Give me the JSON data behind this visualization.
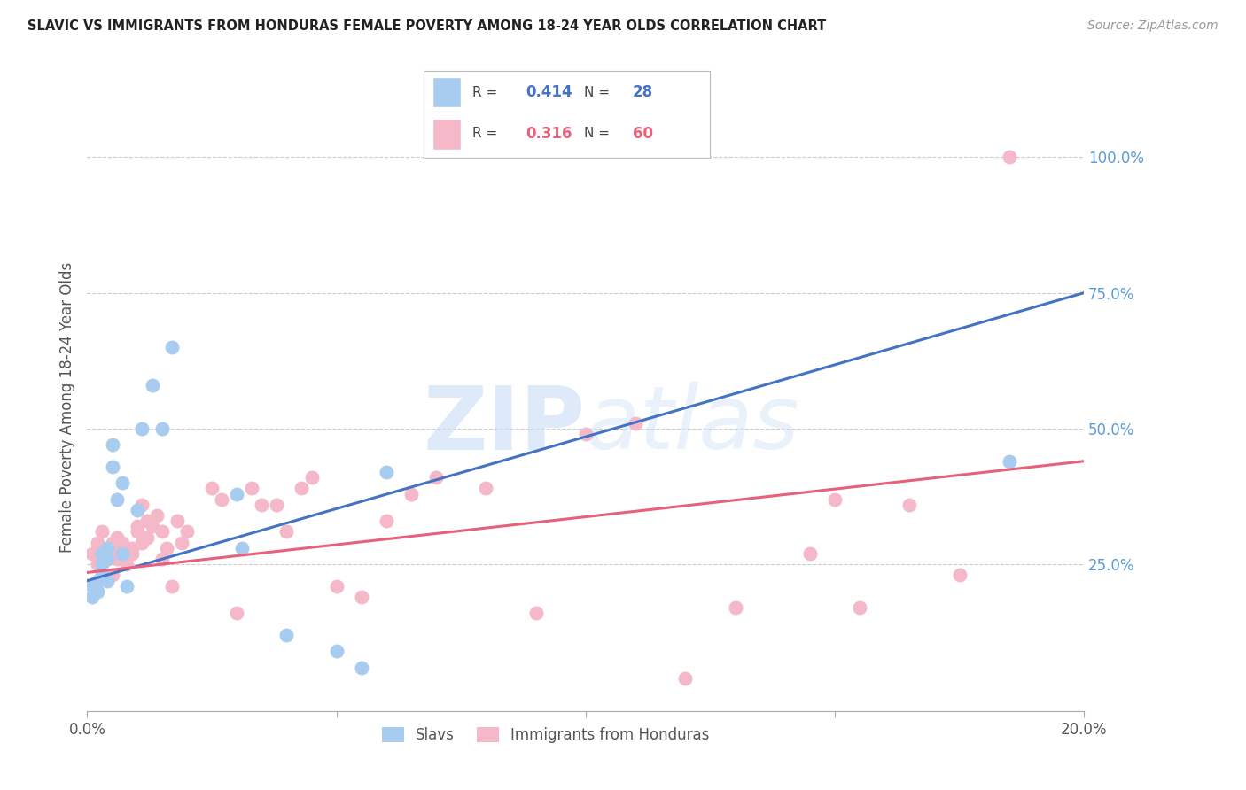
{
  "title": "SLAVIC VS IMMIGRANTS FROM HONDURAS FEMALE POVERTY AMONG 18-24 YEAR OLDS CORRELATION CHART",
  "source": "Source: ZipAtlas.com",
  "ylabel": "Female Poverty Among 18-24 Year Olds",
  "xlabel_slavs": "Slavs",
  "xlabel_honduras": "Immigrants from Honduras",
  "xmin": 0.0,
  "xmax": 0.2,
  "ymin": -0.02,
  "ymax": 1.1,
  "yticks": [
    0.25,
    0.5,
    0.75,
    1.0
  ],
  "ytick_labels": [
    "25.0%",
    "50.0%",
    "75.0%",
    "100.0%"
  ],
  "xticks": [
    0.0,
    0.05,
    0.1,
    0.15,
    0.2
  ],
  "xtick_labels": [
    "0.0%",
    "",
    "",
    "",
    "20.0%"
  ],
  "slavs_R": 0.414,
  "slavs_N": 28,
  "honduras_R": 0.316,
  "honduras_N": 60,
  "slavs_color": "#A8CCF0",
  "honduras_color": "#F5B8C8",
  "slavs_line_color": "#4472C4",
  "honduras_line_color": "#E8607A",
  "watermark_color": "#C8DCF5",
  "background_color": "#FFFFFF",
  "slavs_x": [
    0.001,
    0.001,
    0.002,
    0.002,
    0.003,
    0.003,
    0.003,
    0.004,
    0.004,
    0.004,
    0.005,
    0.005,
    0.006,
    0.007,
    0.007,
    0.008,
    0.01,
    0.011,
    0.013,
    0.015,
    0.017,
    0.03,
    0.031,
    0.04,
    0.05,
    0.055,
    0.06,
    0.185
  ],
  "slavs_y": [
    0.21,
    0.19,
    0.22,
    0.2,
    0.25,
    0.27,
    0.23,
    0.26,
    0.28,
    0.22,
    0.47,
    0.43,
    0.37,
    0.4,
    0.27,
    0.21,
    0.35,
    0.5,
    0.58,
    0.5,
    0.65,
    0.38,
    0.28,
    0.12,
    0.09,
    0.06,
    0.42,
    0.44
  ],
  "honduras_x": [
    0.001,
    0.002,
    0.002,
    0.003,
    0.003,
    0.004,
    0.004,
    0.005,
    0.005,
    0.005,
    0.006,
    0.006,
    0.006,
    0.007,
    0.007,
    0.008,
    0.008,
    0.009,
    0.009,
    0.01,
    0.01,
    0.011,
    0.011,
    0.012,
    0.012,
    0.013,
    0.014,
    0.015,
    0.015,
    0.016,
    0.017,
    0.018,
    0.019,
    0.02,
    0.025,
    0.027,
    0.03,
    0.033,
    0.035,
    0.038,
    0.04,
    0.043,
    0.045,
    0.05,
    0.055,
    0.06,
    0.065,
    0.07,
    0.08,
    0.09,
    0.1,
    0.11,
    0.12,
    0.13,
    0.145,
    0.15,
    0.155,
    0.165,
    0.175,
    0.185
  ],
  "honduras_y": [
    0.27,
    0.25,
    0.29,
    0.28,
    0.31,
    0.26,
    0.27,
    0.29,
    0.23,
    0.27,
    0.26,
    0.3,
    0.28,
    0.29,
    0.27,
    0.27,
    0.25,
    0.28,
    0.27,
    0.31,
    0.32,
    0.29,
    0.36,
    0.33,
    0.3,
    0.32,
    0.34,
    0.31,
    0.26,
    0.28,
    0.21,
    0.33,
    0.29,
    0.31,
    0.39,
    0.37,
    0.16,
    0.39,
    0.36,
    0.36,
    0.31,
    0.39,
    0.41,
    0.21,
    0.19,
    0.33,
    0.38,
    0.41,
    0.39,
    0.16,
    0.49,
    0.51,
    0.04,
    0.17,
    0.27,
    0.37,
    0.17,
    0.36,
    0.23,
    1.0
  ],
  "slavs_line_x0": 0.0,
  "slavs_line_y0": 0.22,
  "slavs_line_x1": 0.2,
  "slavs_line_y1": 0.75,
  "honduras_line_x0": 0.0,
  "honduras_line_y0": 0.235,
  "honduras_line_x1": 0.2,
  "honduras_line_y1": 0.44
}
